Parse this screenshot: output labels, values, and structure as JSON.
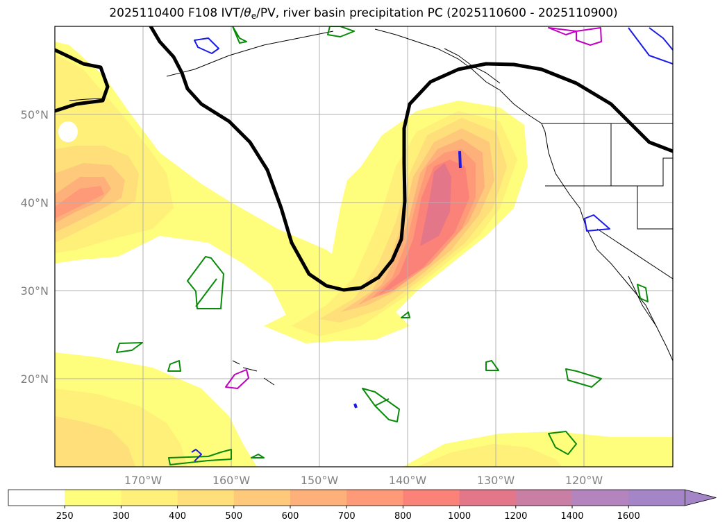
{
  "title": {
    "prefix": "2025110400 F108 IVT/",
    "theta": "θ",
    "theta_sub": "e",
    "suffix": "/PV, river basin precipitation PC (2025110600 - 2025110900)"
  },
  "map": {
    "lat_labels": [
      "50°N",
      "40°N",
      "30°N",
      "20°N"
    ],
    "lon_labels": [
      "170°W",
      "160°W",
      "150°W",
      "140°W",
      "130°W",
      "120°W"
    ],
    "lat_values": [
      50,
      40,
      30,
      20
    ],
    "lon_values": [
      -170,
      -160,
      -150,
      -140,
      -130,
      -120
    ],
    "extent": {
      "lon_min": -180,
      "lon_max": -110,
      "lat_min": 10,
      "lat_max": 60
    }
  },
  "colorbar": {
    "levels": [
      "250",
      "300",
      "400",
      "500",
      "600",
      "700",
      "800",
      "1000",
      "1200",
      "1400",
      "1600"
    ],
    "colors": [
      "#ffffff",
      "#fffd7c",
      "#fff07a",
      "#fedf7a",
      "#fec97a",
      "#feb07a",
      "#fe9a78",
      "#fb8278",
      "#e4768a",
      "#c97ea4",
      "#b384be",
      "#a485c8"
    ],
    "extend": "max"
  },
  "colors": {
    "ivt_fill": [
      "#fffd7c",
      "#fff07a",
      "#fedf7a",
      "#fec97a",
      "#feb07a",
      "#fe9a78",
      "#fb8278",
      "#e4768a"
    ],
    "pv_contour": "#000000",
    "basin_green": "#0a8a0a",
    "basin_blue": "#1a1ae6",
    "basin_magenta": "#c000c0",
    "grid": "#b0b0b0",
    "label_gray": "#808080"
  }
}
